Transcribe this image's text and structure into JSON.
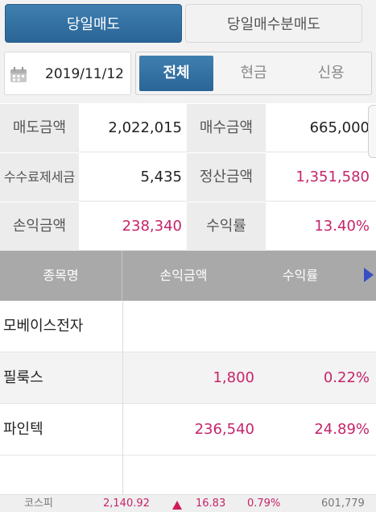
{
  "tabs": {
    "active": "당일매도",
    "inactive": "당일매수분매도"
  },
  "filter": {
    "date": "2019/11/12",
    "options": [
      "전체",
      "현금",
      "신용"
    ],
    "selected": "전체"
  },
  "summary": {
    "sell_amount_label": "매도금액",
    "sell_amount": "2,022,015",
    "buy_amount_label": "매수금액",
    "buy_amount": "665,000",
    "fee_tax_label_1": "수수료",
    "fee_tax_label_2": "제세금",
    "fee_tax": "5,435",
    "settle_label": "정산금액",
    "settle_amount": "1,351,580",
    "pnl_label": "손익금액",
    "pnl": "238,340",
    "return_label": "수익률",
    "return": "13.40%"
  },
  "table": {
    "headers": [
      "종목명",
      "손익금액",
      "수익률"
    ],
    "rows": [
      {
        "name": "모베이스전자",
        "pnl": "",
        "rate": ""
      },
      {
        "name": "필룩스",
        "pnl": "1,800",
        "rate": "0.22%"
      },
      {
        "name": "파인텍",
        "pnl": "236,540",
        "rate": "24.89%"
      }
    ]
  },
  "ticker": {
    "name": "코스피",
    "value": "2,140.92",
    "direction": "up",
    "change": "16.83",
    "percent": "0.79%",
    "volume": "601,779"
  },
  "colors": {
    "accent": "#2a6597",
    "profit": "#c6246a",
    "header": "#a9a9a9"
  }
}
